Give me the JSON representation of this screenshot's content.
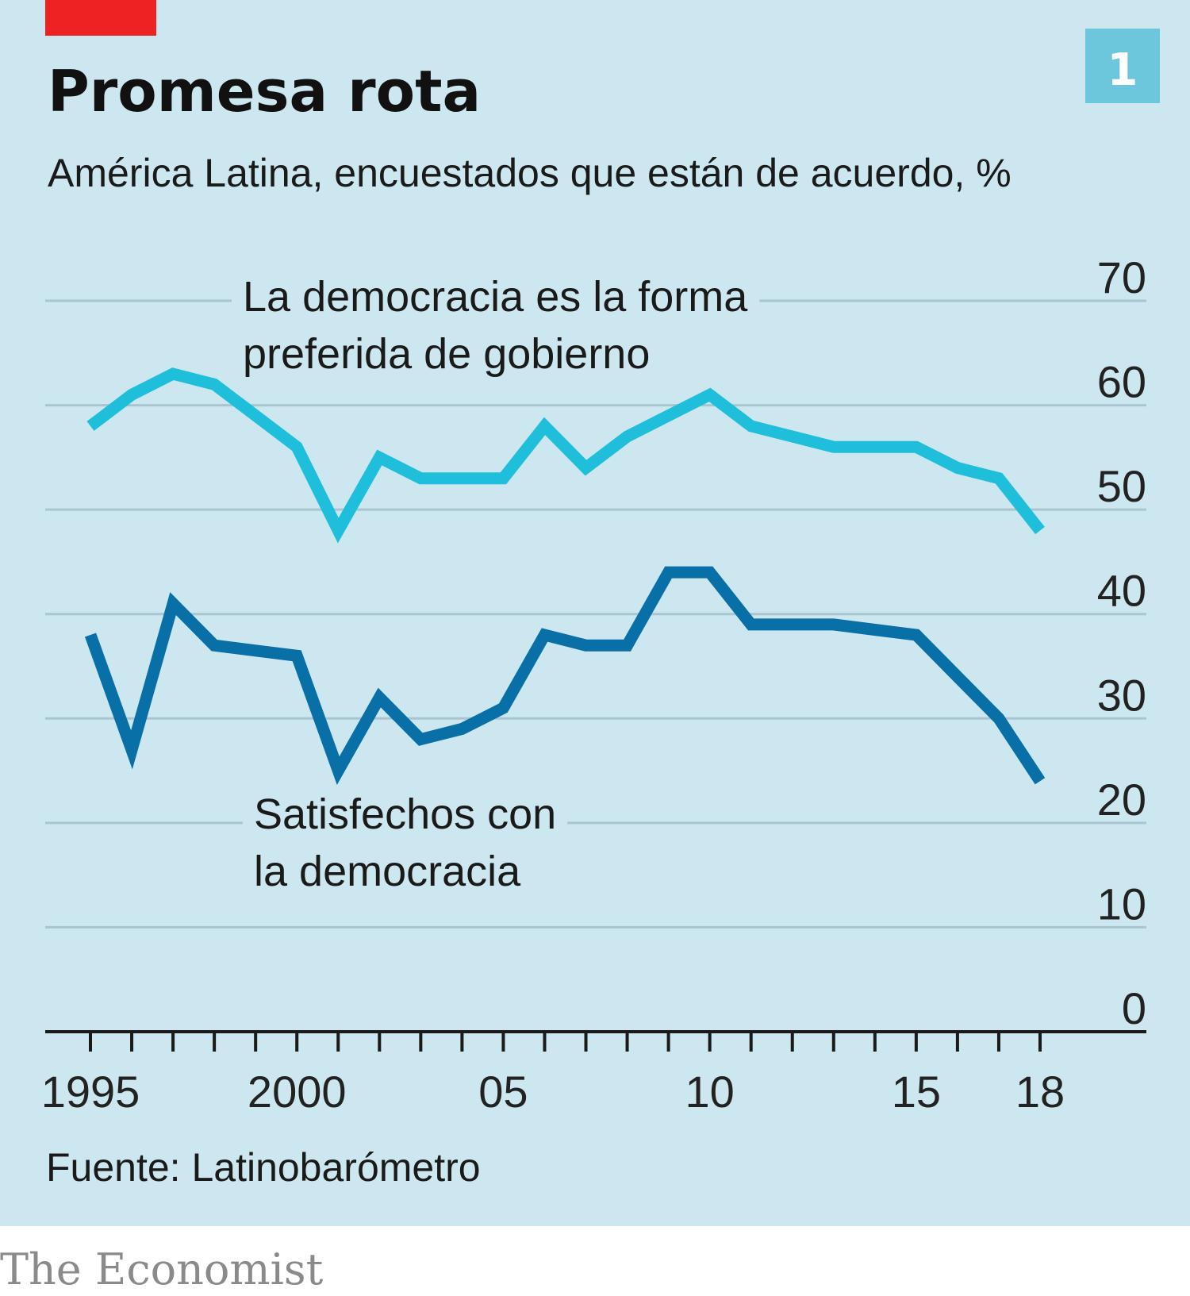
{
  "header": {
    "title": "Promesa rota",
    "subtitle": "América Latina, encuestados que están de acuerdo, %",
    "badge": "1"
  },
  "footer": {
    "source": "Fuente: Latinobarómetro",
    "brand": "The Economist"
  },
  "colors": {
    "background": "#cde7f1",
    "accent": "#ee2222",
    "badge": "#6cc7dd",
    "series_preferred": "#1fbfdc",
    "series_satisfied": "#086fa7",
    "grid": "#a9c6d0",
    "axis": "#1a1a1a"
  },
  "chart_data": {
    "type": "line",
    "title": "Promesa rota",
    "subtitle": "América Latina, encuestados que están de acuerdo, %",
    "ylim": [
      0,
      70
    ],
    "yticks": [
      0,
      10,
      20,
      30,
      40,
      50,
      60,
      70
    ],
    "ytick_labels": [
      "0",
      "10",
      "20",
      "30",
      "40",
      "50",
      "60",
      "70"
    ],
    "xlim": [
      1994,
      2020.5
    ],
    "xticks": [
      1995,
      1996,
      1997,
      1998,
      1999,
      2000,
      2001,
      2002,
      2003,
      2004,
      2005,
      2006,
      2007,
      2008,
      2009,
      2010,
      2011,
      2012,
      2013,
      2014,
      2015,
      2016,
      2017,
      2018
    ],
    "xtick_labels": [
      {
        "x": 1995,
        "label": "1995"
      },
      {
        "x": 2000,
        "label": "2000"
      },
      {
        "x": 2005,
        "label": "05"
      },
      {
        "x": 2010,
        "label": "10"
      },
      {
        "x": 2015,
        "label": "15"
      },
      {
        "x": 2018,
        "label": "18"
      }
    ],
    "grid": true,
    "y_axis_side": "right",
    "series": [
      {
        "name": "La democracia es la forma preferida de gobierno",
        "label_lines": [
          "La democracia es la forma",
          "preferida de gobierno"
        ],
        "color": "#1fbfdc",
        "x": [
          1995,
          1996,
          1997,
          1998,
          1999,
          2000,
          2001,
          2002,
          2003,
          2004,
          2005,
          2006,
          2007,
          2008,
          2009,
          2010,
          2011,
          2012,
          2013,
          2014,
          2015,
          2016,
          2017,
          2018
        ],
        "values": [
          58,
          61,
          63,
          62,
          59,
          56,
          48,
          55,
          53,
          53,
          53,
          58,
          54,
          57,
          59,
          61,
          58,
          57,
          56,
          56,
          56,
          54,
          53,
          48
        ]
      },
      {
        "name": "Satisfechos con la democracia",
        "label_lines": [
          "Satisfechos con",
          "la democracia"
        ],
        "color": "#086fa7",
        "x": [
          1995,
          1996,
          1997,
          1998,
          1999,
          2000,
          2001,
          2002,
          2003,
          2004,
          2005,
          2006,
          2007,
          2008,
          2009,
          2010,
          2011,
          2012,
          2013,
          2014,
          2015,
          2016,
          2017,
          2018
        ],
        "values": [
          38,
          27,
          41,
          37,
          36.5,
          36,
          25,
          32,
          28,
          29,
          31,
          38,
          37,
          37,
          44,
          44,
          39,
          39,
          39,
          38.5,
          38,
          34,
          30,
          24
        ]
      }
    ]
  }
}
